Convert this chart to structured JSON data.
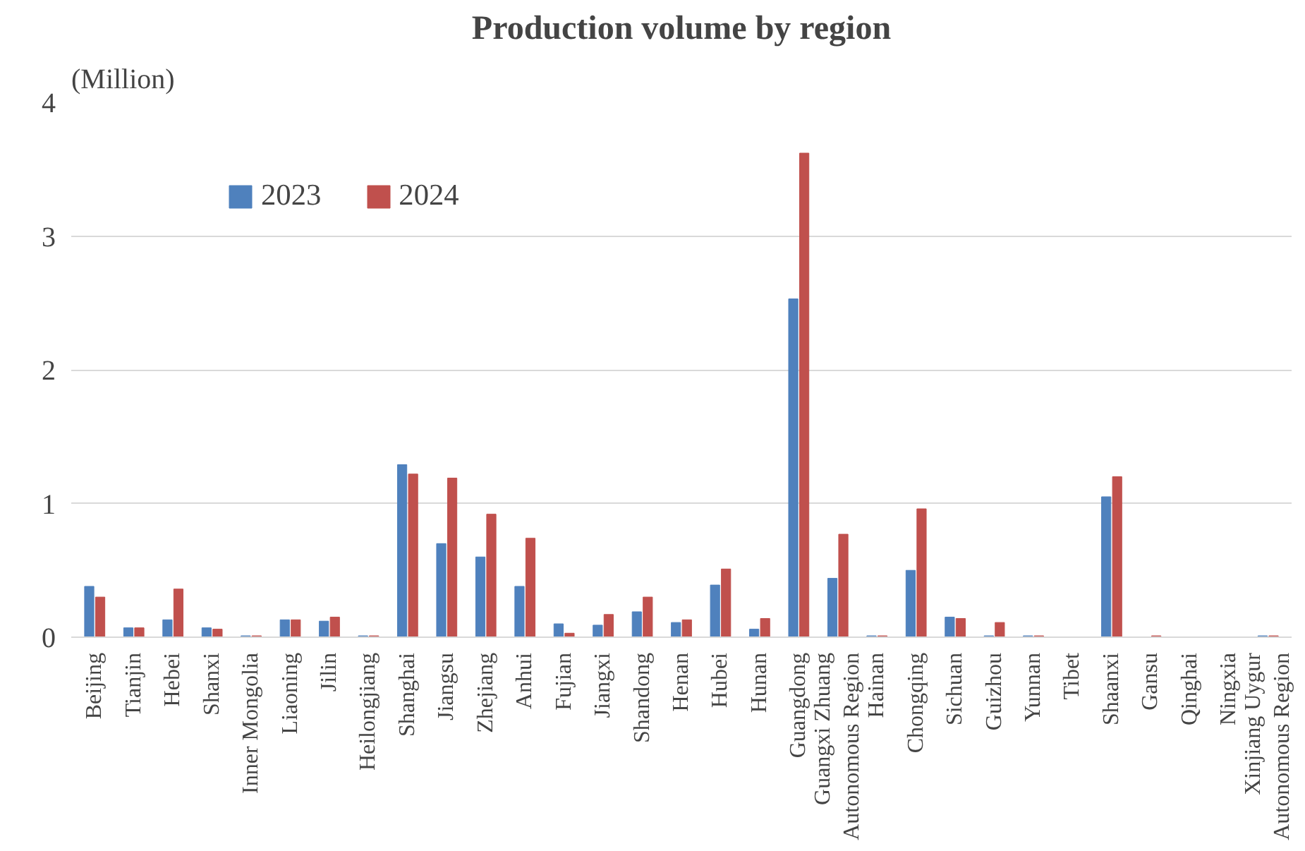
{
  "chart_data": {
    "type": "bar",
    "title": "Production volume by region",
    "ylabel": "(Million)",
    "categories": [
      "Beijing",
      "Tianjin",
      "Hebei",
      "Shanxi",
      "Inner Mongolia",
      "Liaoning",
      "Jilin",
      "Heilongjiang",
      "Shanghai",
      "Jiangsu",
      "Zhejiang",
      "Anhui",
      "Fujian",
      "Jiangxi",
      "Shandong",
      "Henan",
      "Hubei",
      "Hunan",
      "Guangdong",
      "Guangxi Zhuang\nAutonomous Region",
      "Hainan",
      "Chongqing",
      "Sichuan",
      "Guizhou",
      "Yunnan",
      "Tibet",
      "Shaanxi",
      "Gansu",
      "Qinghai",
      "Ningxia",
      "Xinjiang Uygur\nAutonomous Region"
    ],
    "series": [
      {
        "name": "2023",
        "color": "#4f81bd",
        "values": [
          0.38,
          0.07,
          0.13,
          0.07,
          0.01,
          0.13,
          0.12,
          0.01,
          1.29,
          0.7,
          0.6,
          0.38,
          0.1,
          0.09,
          0.19,
          0.11,
          0.39,
          0.06,
          2.53,
          0.44,
          0.01,
          0.5,
          0.15,
          0.01,
          0.01,
          0,
          1.05,
          0,
          0,
          0,
          0.01
        ]
      },
      {
        "name": "2024",
        "color": "#c0504d",
        "values": [
          0.3,
          0.07,
          0.36,
          0.06,
          0.01,
          0.13,
          0.15,
          0.01,
          1.22,
          1.19,
          0.92,
          0.74,
          0.03,
          0.17,
          0.3,
          0.13,
          0.51,
          0.14,
          3.62,
          0.77,
          0.01,
          0.96,
          0.14,
          0.11,
          0.01,
          0,
          1.2,
          0.01,
          0,
          0,
          0.01
        ]
      }
    ],
    "ylim": [
      0,
      4
    ],
    "yticks": [
      0,
      1,
      2,
      3,
      4
    ],
    "grid": "y",
    "legend": "top left"
  }
}
